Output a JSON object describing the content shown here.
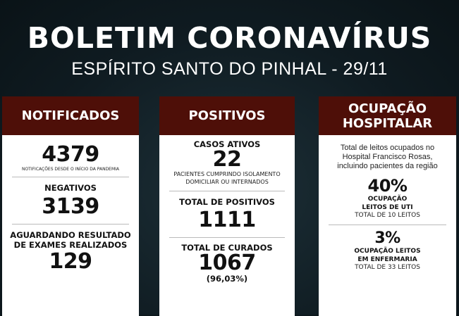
{
  "header": {
    "title": "BOLETIM CORONAVÍRUS",
    "subtitle": "ESPÍRITO SANTO DO PINHAL - 29/11"
  },
  "notificados": {
    "title": "NOTIFICADOS",
    "total": "4379",
    "total_note": "NOTIFICAÇÕES DESDE O INÍCIO DA PANDEMIA",
    "negativos_label": "NEGATIVOS",
    "negativos": "3139",
    "aguardando_label1": "AGUARDANDO RESULTADO",
    "aguardando_label2": "DE EXAMES REALIZADOS",
    "aguardando": "129"
  },
  "positivos": {
    "title": "POSITIVOS",
    "ativos_label": "CASOS ATIVOS",
    "ativos": "22",
    "ativos_note1": "PACIENTES CUMPRINDO ISOLAMENTO",
    "ativos_note2": "DOMICILIAR OU INTERNADOS",
    "total_label": "TOTAL DE POSITIVOS",
    "total": "1111",
    "curados_label": "TOTAL DE CURADOS",
    "curados": "1067",
    "curados_pct": "(96,03%)"
  },
  "ocupacao": {
    "title1": "OCUPAÇÃO",
    "title2": "HOSPITALAR",
    "desc1": "Total de leitos ocupados no",
    "desc2": "Hospital Francisco Rosas,",
    "desc3": "incluindo pacientes da região",
    "uti_pct": "40%",
    "uti_label1": "OCUPAÇÃO",
    "uti_label2": "LEITOS DE UTI",
    "uti_total": "TOTAL DE 10 LEITOS",
    "enf_pct": "3%",
    "enf_label1": "OCUPAÇÃO LEITOS",
    "enf_label2": "EM ENFERMARIA",
    "enf_total": "TOTAL DE 33 LEITOS"
  },
  "colors": {
    "header": "#4e0f08",
    "background": "#0f1b21"
  }
}
